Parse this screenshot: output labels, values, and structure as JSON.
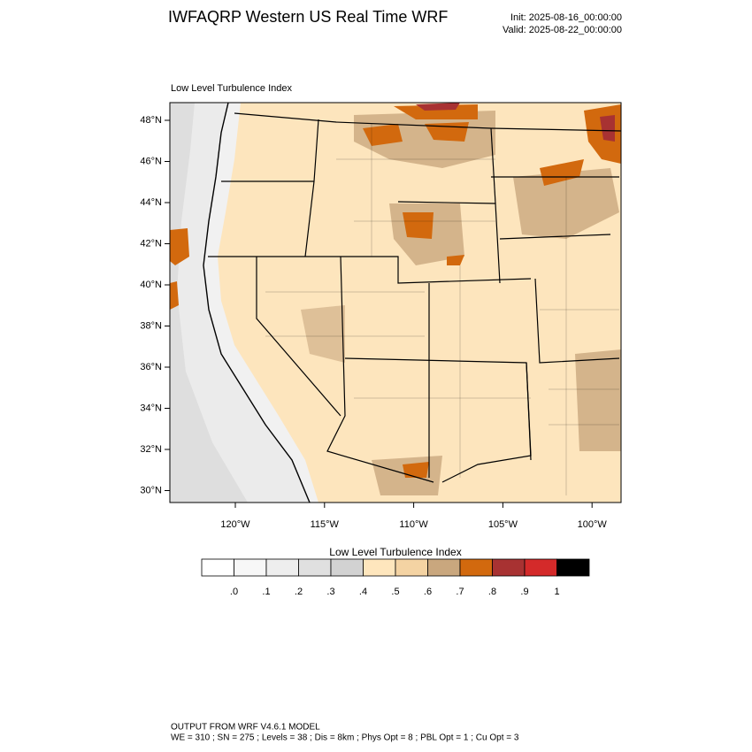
{
  "header": {
    "title": "IWFAQRP Western US Real Time WRF",
    "init": "Init: 2025-08-16_00:00:00",
    "valid": "Valid: 2025-08-22_00:00:00"
  },
  "map": {
    "label": "Low Level Turbulence Index",
    "lat_labels": [
      "48°N",
      "46°N",
      "44°N",
      "42°N",
      "40°N",
      "38°N",
      "36°N",
      "34°N",
      "32°N",
      "30°N"
    ],
    "lon_labels": [
      "120°W",
      "115°W",
      "110°W",
      "105°W",
      "100°W"
    ]
  },
  "colorbar": {
    "title": "Low Level Turbulence Index",
    "colors": [
      "#ffffff",
      "#f7f7f7",
      "#eeeeee",
      "#e0e0e0",
      "#d2d2d2",
      "#fee6bd",
      "#f4d3a3",
      "#c9a77e",
      "#d2690e",
      "#a83232",
      "#d42a2a",
      "#000000"
    ],
    "labels": [
      ".0",
      ".1",
      ".2",
      ".3",
      ".4",
      ".5",
      ".6",
      ".7",
      ".8",
      ".9",
      "1"
    ]
  },
  "footer": {
    "line1": "OUTPUT FROM WRF V4.6.1 MODEL",
    "line2": "WE = 310 ; SN = 275 ; Levels = 38 ; Dis = 8km ; Phys Opt = 8 ; PBL Opt = 1 ; Cu Opt = 3"
  }
}
